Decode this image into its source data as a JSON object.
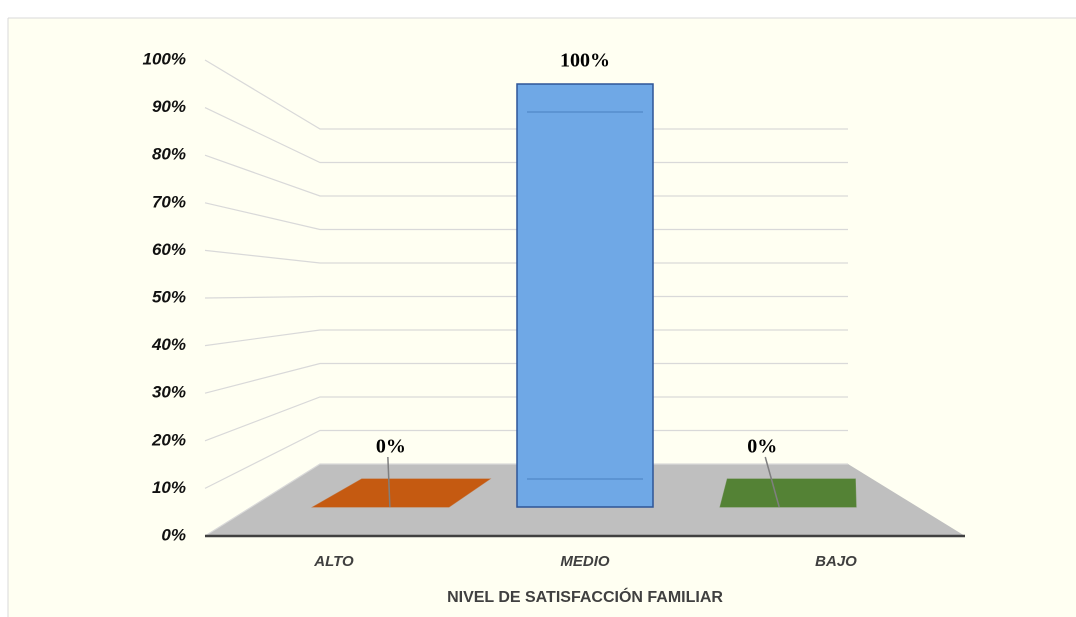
{
  "chart_data": {
    "type": "bar3d",
    "x_label": "NIVEL DE SATISFACCIÓN FAMILIAR",
    "categories": [
      "ALTO",
      "MEDIO",
      "BAJO"
    ],
    "values": [
      0,
      100,
      0
    ],
    "value_labels": [
      "0%",
      "100%",
      "0%"
    ],
    "colors": [
      "#c55a11",
      "#6fa8e6",
      "#548235"
    ],
    "ylim": [
      0,
      100
    ],
    "yticks": [
      {
        "value": 0,
        "label": "0%"
      },
      {
        "value": 10,
        "label": "10%"
      },
      {
        "value": 20,
        "label": "20%"
      },
      {
        "value": 30,
        "label": "30%"
      },
      {
        "value": 40,
        "label": "40%"
      },
      {
        "value": 50,
        "label": "50%"
      },
      {
        "value": 60,
        "label": "60%"
      },
      {
        "value": 70,
        "label": "70%"
      },
      {
        "value": 80,
        "label": "80%"
      },
      {
        "value": 90,
        "label": "90%"
      },
      {
        "value": 100,
        "label": "100%"
      }
    ],
    "grid": true
  }
}
